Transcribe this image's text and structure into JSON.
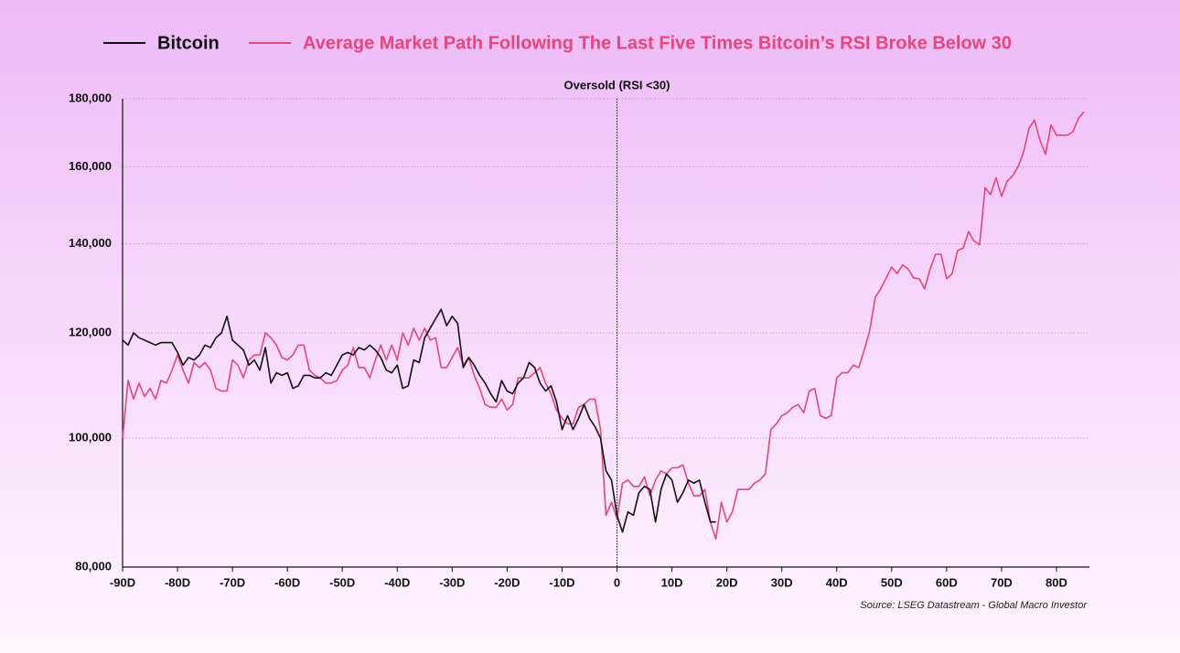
{
  "chart_data": {
    "type": "line",
    "annotation": {
      "x": 0,
      "label": "Oversold (RSI <30)"
    },
    "source": "Source: LSEG Datastream - Global Macro Investor",
    "log_y": true,
    "grid": true,
    "xlim": [
      -90,
      86
    ],
    "ylim": [
      80000,
      180000
    ],
    "yticks": [
      {
        "value": 80000,
        "label": "80,000"
      },
      {
        "value": 100000,
        "label": "100,000"
      },
      {
        "value": 120000,
        "label": "120,000"
      },
      {
        "value": 140000,
        "label": "140,000"
      },
      {
        "value": 160000,
        "label": "160,000"
      },
      {
        "value": 180000,
        "label": "180,000"
      }
    ],
    "xticks": [
      {
        "value": -90,
        "label": "-90D"
      },
      {
        "value": -80,
        "label": "-80D"
      },
      {
        "value": -70,
        "label": "-70D"
      },
      {
        "value": -60,
        "label": "-60D"
      },
      {
        "value": -50,
        "label": "-50D"
      },
      {
        "value": -40,
        "label": "-40D"
      },
      {
        "value": -30,
        "label": "-30D"
      },
      {
        "value": -20,
        "label": "-20D"
      },
      {
        "value": -10,
        "label": "-10D"
      },
      0,
      {
        "value": 10,
        "label": "10D"
      },
      {
        "value": 20,
        "label": "20D"
      },
      {
        "value": 30,
        "label": "30D"
      },
      {
        "value": 40,
        "label": "40D"
      },
      {
        "value": 50,
        "label": "50D"
      },
      {
        "value": 60,
        "label": "60D"
      },
      {
        "value": 70,
        "label": "70D"
      },
      {
        "value": 80,
        "label": "80D"
      }
    ],
    "x": [
      -90,
      -89,
      -88,
      -87,
      -86,
      -85,
      -84,
      -83,
      -82,
      -81,
      -80,
      -79,
      -78,
      -77,
      -76,
      -75,
      -74,
      -73,
      -72,
      -71,
      -70,
      -69,
      -68,
      -67,
      -66,
      -65,
      -64,
      -63,
      -62,
      -61,
      -60,
      -59,
      -58,
      -57,
      -56,
      -55,
      -54,
      -53,
      -52,
      -51,
      -50,
      -49,
      -48,
      -47,
      -46,
      -45,
      -44,
      -43,
      -42,
      -41,
      -40,
      -39,
      -38,
      -37,
      -36,
      -35,
      -34,
      -33,
      -32,
      -31,
      -30,
      -29,
      -28,
      -27,
      -26,
      -25,
      -24,
      -23,
      -22,
      -21,
      -20,
      -19,
      -18,
      -17,
      -16,
      -15,
      -14,
      -13,
      -12,
      -11,
      -10,
      -9,
      -8,
      -7,
      -6,
      -5,
      -4,
      -3,
      -2,
      -1,
      0,
      1,
      2,
      3,
      4,
      5,
      6,
      7,
      8,
      9,
      10,
      11,
      12,
      13,
      14,
      15,
      16,
      17,
      18,
      19,
      20,
      21,
      22,
      23,
      24,
      25,
      26,
      27,
      28,
      29,
      30,
      31,
      32,
      33,
      34,
      35,
      36,
      37,
      38,
      39,
      40,
      41,
      42,
      43,
      44,
      45,
      46,
      47,
      48,
      49,
      50,
      51,
      52,
      53,
      54,
      55,
      56,
      57,
      58,
      59,
      60,
      61,
      62,
      63,
      64,
      65,
      66,
      67,
      68,
      69,
      70,
      71,
      72,
      73,
      74,
      75,
      76,
      77,
      78,
      79,
      80,
      81,
      82,
      83,
      84,
      85
    ],
    "series": [
      {
        "name": "Bitcoin",
        "color": "#111111",
        "values": [
          118500,
          117500,
          120000,
          119000,
          118500,
          118000,
          117500,
          118000,
          118000,
          118000,
          116000,
          113500,
          115000,
          114500,
          115500,
          117500,
          117000,
          119000,
          120000,
          123500,
          118500,
          117500,
          116500,
          113500,
          114500,
          112500,
          117000,
          110000,
          112000,
          111500,
          112000,
          109000,
          109500,
          111500,
          111500,
          111000,
          111000,
          112000,
          111500,
          113500,
          115500,
          116000,
          115500,
          117000,
          116500,
          117500,
          116500,
          115000,
          112500,
          112000,
          113500,
          109000,
          109500,
          114500,
          114000,
          119000,
          121000,
          123000,
          125000,
          121500,
          123500,
          122000,
          113000,
          115000,
          113500,
          111500,
          110000,
          108000,
          106500,
          110500,
          108500,
          108000,
          110000,
          111000,
          114000,
          113000,
          110000,
          108500,
          109500,
          106500,
          101500,
          104000,
          101500,
          103500,
          106000,
          103500,
          102000,
          100000,
          94500,
          93000,
          87500,
          85000,
          88000,
          87500,
          91000,
          92000,
          91500,
          86500,
          91500,
          94000,
          93000,
          89500,
          91000,
          93000,
          92500,
          93000,
          89500,
          86500,
          86500,
          null,
          null,
          null,
          null,
          null,
          null,
          null,
          null,
          null,
          null,
          null,
          null,
          null,
          null,
          null,
          null,
          null,
          null,
          null,
          null,
          null,
          null,
          null,
          null,
          null,
          null,
          null,
          null,
          null,
          null,
          null,
          null,
          null,
          null,
          null,
          null,
          null,
          null,
          null,
          null,
          null,
          null,
          null,
          null,
          null,
          null,
          null,
          null,
          null,
          null,
          null,
          null,
          null,
          null,
          null,
          null,
          null,
          null,
          null,
          null,
          null,
          null,
          null,
          null,
          null,
          null,
          null
        ]
      },
      {
        "name": "Average Market Path Following The Last Five Times Bitcoin’s RSI Broke Below 30",
        "color": "#e8457a",
        "values": [
          100000,
          110500,
          107000,
          110000,
          107500,
          109000,
          107000,
          110500,
          110000,
          112500,
          115500,
          112500,
          110000,
          114000,
          113000,
          114000,
          112500,
          109000,
          108500,
          108500,
          114500,
          113500,
          111000,
          114500,
          115500,
          115500,
          120000,
          119000,
          117500,
          115000,
          114500,
          115500,
          117500,
          117500,
          112500,
          111500,
          111000,
          110000,
          110000,
          110500,
          112500,
          113500,
          117000,
          113000,
          113000,
          111000,
          114500,
          117500,
          114500,
          117500,
          114500,
          120000,
          117500,
          121000,
          118500,
          121000,
          118500,
          119000,
          113000,
          113000,
          115000,
          117000,
          113500,
          115000,
          111500,
          109000,
          106000,
          105500,
          105500,
          107000,
          105000,
          106000,
          111000,
          111000,
          111000,
          112000,
          113000,
          110000,
          108000,
          105000,
          103500,
          102500,
          102500,
          105500,
          106000,
          107000,
          107000,
          101500,
          87500,
          89500,
          87000,
          92500,
          93000,
          92000,
          92000,
          93500,
          90500,
          93000,
          94500,
          94000,
          95000,
          95000,
          95500,
          92500,
          90500,
          90500,
          91500,
          86500,
          84000,
          89500,
          86500,
          88000,
          91500,
          91500,
          91500,
          92500,
          93000,
          94000,
          101500,
          102500,
          104000,
          104500,
          105500,
          106000,
          104500,
          108500,
          109000,
          104000,
          103500,
          104000,
          111000,
          112000,
          112000,
          113500,
          113000,
          116500,
          120500,
          127600,
          129500,
          132000,
          134500,
          133000,
          135000,
          134000,
          132000,
          131800,
          129500,
          134000,
          137500,
          137500,
          131800,
          133000,
          138400,
          139000,
          143000,
          140700,
          139800,
          154300,
          152500,
          157000,
          152000,
          156000,
          157500,
          160000,
          164000,
          171000,
          173500,
          167500,
          163500,
          172000,
          169000,
          169000,
          169000,
          170000,
          174000,
          176000
        ]
      }
    ]
  }
}
